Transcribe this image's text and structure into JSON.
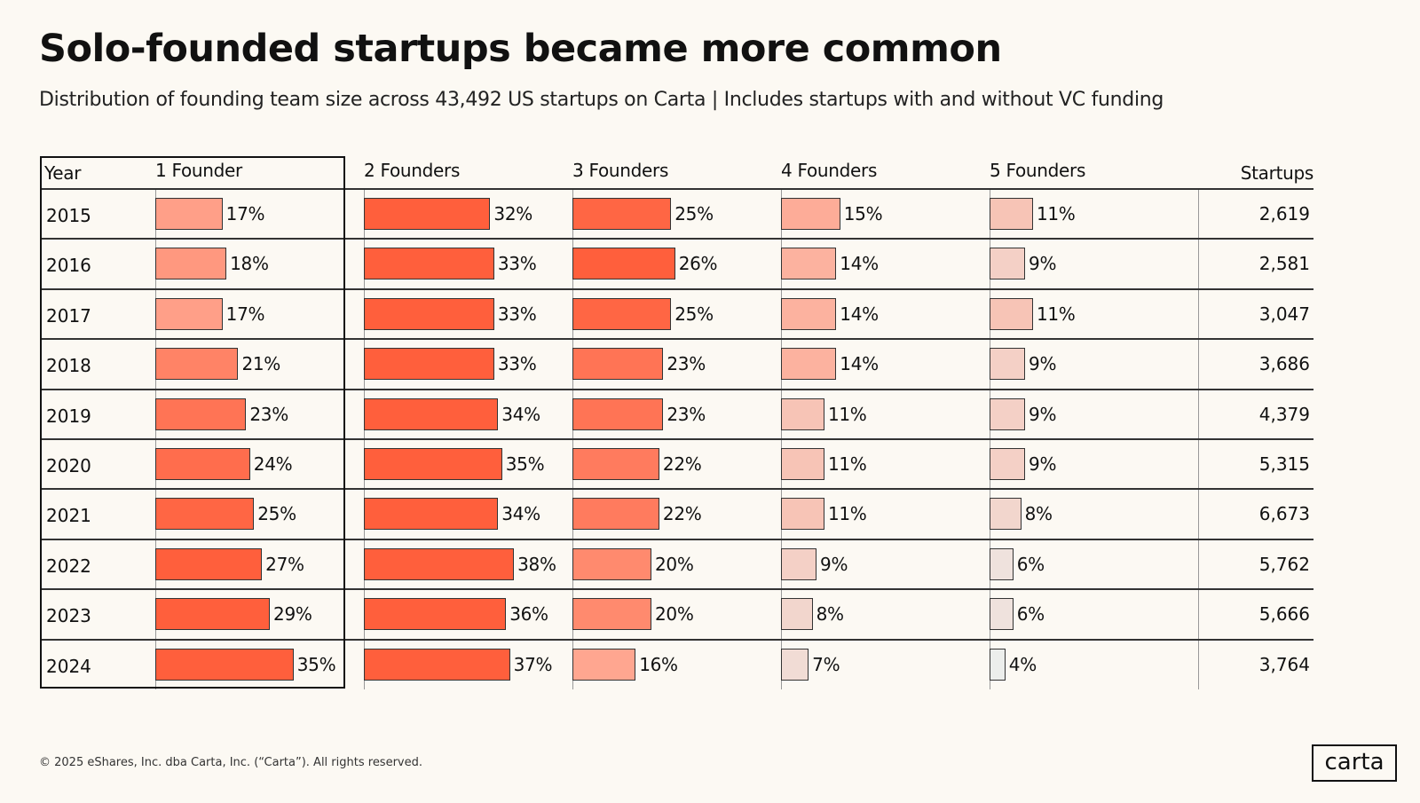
{
  "title": "Solo-founded startups became more common",
  "subtitle": "Distribution of founding team size across 43,492 US startups on Carta | Includes startups with and without VC funding",
  "footer": "© 2025 eShares, Inc. dba Carta, Inc. (“Carta”). All rights reserved.",
  "logo": "carta",
  "colors": {
    "high": "#ff5f3c",
    "mid": "#ffa690",
    "low": "#eceeec"
  },
  "chart_data": {
    "type": "table",
    "title": "Solo-founded startups became more common",
    "columns": [
      "Year",
      "1 Founder",
      "2 Founders",
      "3 Founders",
      "4 Founders",
      "5 Founders",
      "Startups"
    ],
    "rows": [
      {
        "year": "2015",
        "values": [
          17,
          32,
          25,
          15,
          11
        ],
        "startups": "2,619"
      },
      {
        "year": "2016",
        "values": [
          18,
          33,
          26,
          14,
          9
        ],
        "startups": "2,581"
      },
      {
        "year": "2017",
        "values": [
          17,
          33,
          25,
          14,
          11
        ],
        "startups": "3,047"
      },
      {
        "year": "2018",
        "values": [
          21,
          33,
          23,
          14,
          9
        ],
        "startups": "3,686"
      },
      {
        "year": "2019",
        "values": [
          23,
          34,
          23,
          11,
          9
        ],
        "startups": "4,379"
      },
      {
        "year": "2020",
        "values": [
          24,
          35,
          22,
          11,
          9
        ],
        "startups": "5,315"
      },
      {
        "year": "2021",
        "values": [
          25,
          34,
          22,
          11,
          8
        ],
        "startups": "6,673"
      },
      {
        "year": "2022",
        "values": [
          27,
          38,
          20,
          9,
          6
        ],
        "startups": "5,762"
      },
      {
        "year": "2023",
        "values": [
          29,
          36,
          20,
          8,
          6
        ],
        "startups": "5,666"
      },
      {
        "year": "2024",
        "values": [
          35,
          37,
          16,
          7,
          4
        ],
        "startups": "3,764"
      }
    ]
  }
}
